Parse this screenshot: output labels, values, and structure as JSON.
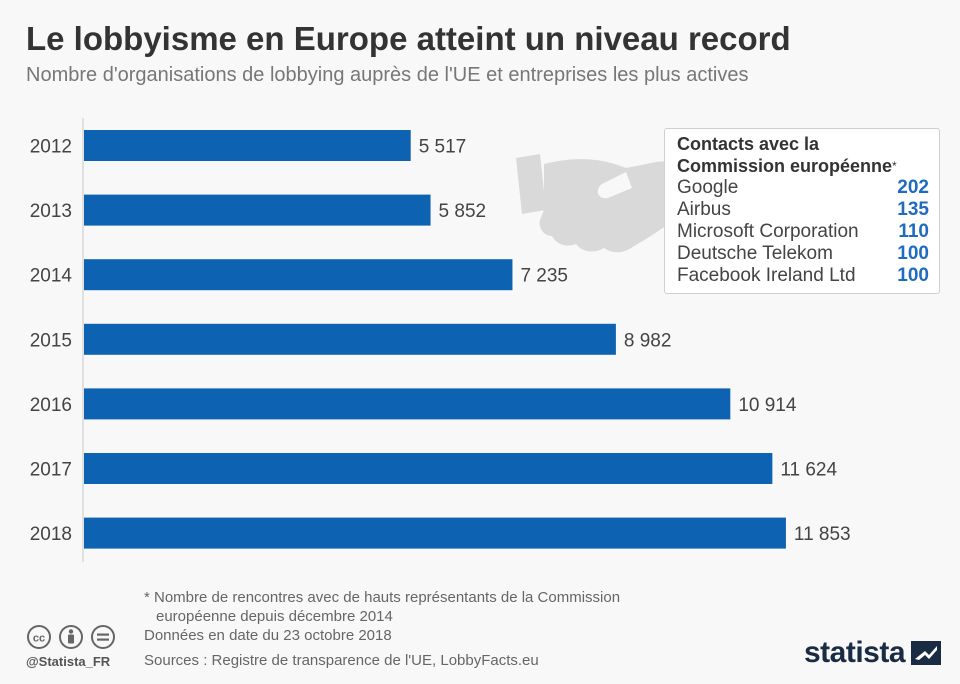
{
  "header": {
    "title": "Le lobbyisme en Europe atteint un niveau record",
    "subtitle": "Nombre d'organisations de lobbying auprès de l'UE et entreprises les plus actives"
  },
  "chart_data": {
    "type": "bar",
    "orientation": "horizontal",
    "categories": [
      "2012",
      "2013",
      "2014",
      "2015",
      "2016",
      "2017",
      "2018"
    ],
    "values": [
      5517,
      5852,
      7235,
      8982,
      10914,
      11624,
      11853
    ],
    "value_labels": [
      "5 517",
      "5 852",
      "7 235",
      "8 982",
      "10 914",
      "11 624",
      "11 853"
    ],
    "title": "Le lobbyisme en Europe atteint un niveau record",
    "subtitle": "Nombre d'organisations de lobbying auprès de l'UE et entreprises les plus actives",
    "xlabel": "",
    "ylabel": "",
    "xlim": [
      0,
      12800
    ],
    "grid": false,
    "bar_color": "#0d63b1"
  },
  "contacts": {
    "title_line1": "Contacts avec la",
    "title_line2": "Commission européenne",
    "star": "*",
    "rows": [
      {
        "name": "Google",
        "value": "202"
      },
      {
        "name": "Airbus",
        "value": "135"
      },
      {
        "name": "Microsoft Corporation",
        "value": "110"
      },
      {
        "name": "Deutsche Telekom",
        "value": "100"
      },
      {
        "name": "Facebook Ireland Ltd",
        "value": "100"
      }
    ],
    "value_color": "#1f6bc0"
  },
  "footer": {
    "note_line1": "* Nombre de rencontres avec de hauts représentants de la Commission",
    "note_line2": "européenne depuis décembre 2014",
    "date_note": "Données en date du 23 octobre 2018",
    "sources": "Sources : Registre de transparence de l'UE, LobbyFacts.eu",
    "handle": "@Statista_FR",
    "brand": "statista"
  },
  "icons": {
    "decoration": "handshake-icon",
    "license": [
      "cc-icon",
      "by-icon",
      "equals-icon"
    ],
    "brand_mark": "statista-logo-icon"
  }
}
